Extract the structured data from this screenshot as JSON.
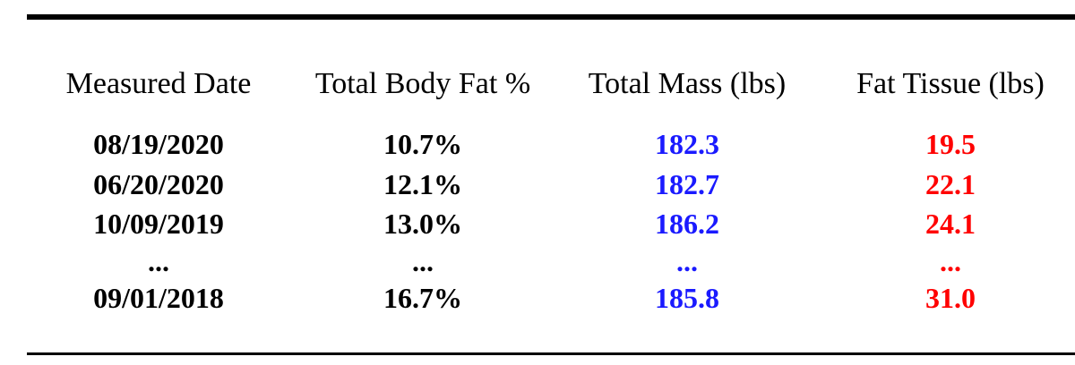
{
  "colors": {
    "mass": "#1a1aff",
    "fat_tissue": "#ff0000",
    "text": "#000000"
  },
  "headers": {
    "date": "Measured Date",
    "body_fat": "Total Body Fat %",
    "mass": "Total Mass (lbs)",
    "fat_tissue": "Fat Tissue (lbs)"
  },
  "rows": [
    {
      "date": "08/19/2020",
      "body_fat": "10.7%",
      "mass": "182.3",
      "fat_tissue": "19.5"
    },
    {
      "date": "06/20/2020",
      "body_fat": "12.1%",
      "mass": "182.7",
      "fat_tissue": "22.1"
    },
    {
      "date": "10/09/2019",
      "body_fat": "13.0%",
      "mass": "186.2",
      "fat_tissue": "24.1"
    },
    {
      "date": "...",
      "body_fat": "...",
      "mass": "...",
      "fat_tissue": "..."
    },
    {
      "date": "09/01/2018",
      "body_fat": "16.7%",
      "mass": "185.8",
      "fat_tissue": "31.0"
    }
  ]
}
